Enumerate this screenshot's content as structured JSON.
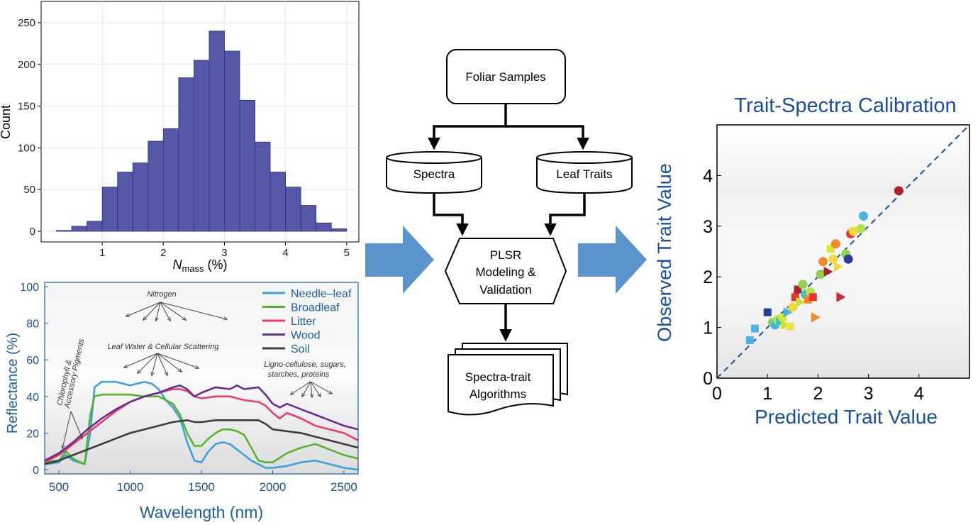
{
  "colors": {
    "histogram_bar": "#5558a6",
    "histogram_edge": "#2f3180",
    "accent_blue": "#1a4f9c",
    "big_arrow": "#5b93cc"
  },
  "chart_data": [
    {
      "type": "bar",
      "histogram": true,
      "xlabel_prefix": "N",
      "xlabel_subscript": "mass",
      "xlabel_suffix": " (%)",
      "ylabel": "Count",
      "bin_edges": [
        0.25,
        0.5,
        0.75,
        1.0,
        1.25,
        1.5,
        1.75,
        2.0,
        2.25,
        2.5,
        2.75,
        3.0,
        3.25,
        3.5,
        3.75,
        4.0,
        4.25,
        4.5,
        4.75,
        5.0
      ],
      "values": [
        1,
        6,
        12,
        53,
        71,
        82,
        108,
        123,
        184,
        205,
        240,
        216,
        157,
        107,
        71,
        53,
        31,
        10,
        3
      ],
      "xlim": [
        0,
        5.2
      ],
      "ylim": [
        0,
        250
      ],
      "xticks": [
        1,
        2,
        3,
        4,
        5
      ],
      "yticks": [
        0,
        50,
        100,
        150,
        200,
        250
      ],
      "grid": true
    },
    {
      "type": "line",
      "xlabel": "Wavelength (nm)",
      "ylabel": "Reflectance (%)",
      "xlim": [
        400,
        2600
      ],
      "ylim": [
        0,
        100
      ],
      "xticks": [
        500,
        1000,
        1500,
        2000,
        2500
      ],
      "yticks": [
        0,
        20,
        40,
        60,
        80,
        100
      ],
      "legend_position": "top-right",
      "series": [
        {
          "name": "Needle–leaf",
          "color": "#3aa3dc",
          "x": [
            400,
            500,
            550,
            600,
            680,
            720,
            750,
            800,
            900,
            1000,
            1100,
            1150,
            1200,
            1250,
            1300,
            1350,
            1400,
            1450,
            1500,
            1550,
            1600,
            1650,
            1700,
            1750,
            1800,
            1850,
            1900,
            1950,
            2000,
            2100,
            2200,
            2300,
            2400,
            2500,
            2600
          ],
          "y": [
            3,
            4,
            8,
            5,
            3,
            20,
            45,
            48,
            48,
            46,
            48,
            47,
            44,
            38,
            34,
            28,
            15,
            5,
            4,
            10,
            14,
            15,
            14,
            11,
            8,
            5,
            3,
            1,
            1,
            2,
            4,
            5,
            3,
            1,
            0
          ]
        },
        {
          "name": "Broadleaf",
          "color": "#55b52e",
          "x": [
            400,
            500,
            550,
            600,
            680,
            720,
            750,
            800,
            900,
            1000,
            1100,
            1200,
            1300,
            1350,
            1400,
            1450,
            1500,
            1550,
            1600,
            1650,
            1700,
            1750,
            1800,
            1850,
            1900,
            1950,
            2000,
            2100,
            2200,
            2300,
            2400,
            2500,
            2600
          ],
          "y": [
            4,
            5,
            10,
            6,
            3,
            30,
            40,
            41,
            41,
            41,
            40,
            40,
            36,
            30,
            20,
            13,
            13,
            17,
            20,
            22,
            22,
            21,
            19,
            12,
            5,
            4,
            4,
            9,
            12,
            14,
            11,
            8,
            6
          ]
        },
        {
          "name": "Litter",
          "color": "#e83c6b",
          "x": [
            400,
            500,
            600,
            700,
            800,
            900,
            1000,
            1100,
            1200,
            1300,
            1350,
            1400,
            1450,
            1500,
            1600,
            1700,
            1800,
            1900,
            1950,
            2000,
            2050,
            2100,
            2200,
            2300,
            2400,
            2500,
            2600
          ],
          "y": [
            4,
            8,
            14,
            20,
            26,
            32,
            37,
            40,
            42,
            44,
            44,
            43,
            40,
            39,
            40,
            40,
            38,
            37,
            35,
            31,
            28,
            31,
            28,
            24,
            22,
            20,
            16
          ]
        },
        {
          "name": "Wood",
          "color": "#6a2c91",
          "x": [
            400,
            500,
            600,
            700,
            800,
            900,
            1000,
            1100,
            1200,
            1300,
            1350,
            1400,
            1450,
            1500,
            1600,
            1700,
            1750,
            1800,
            1900,
            1950,
            2000,
            2050,
            2100,
            2200,
            2300,
            2400,
            2500,
            2600
          ],
          "y": [
            5,
            9,
            15,
            22,
            28,
            33,
            37,
            40,
            42,
            45,
            46,
            44,
            40,
            42,
            45,
            44,
            46,
            44,
            45,
            41,
            36,
            34,
            36,
            33,
            30,
            27,
            24,
            22
          ]
        },
        {
          "name": "Soil",
          "color": "#3d3d3d",
          "x": [
            400,
            500,
            600,
            700,
            800,
            900,
            1000,
            1100,
            1200,
            1300,
            1400,
            1450,
            1500,
            1600,
            1700,
            1800,
            1900,
            1950,
            2000,
            2100,
            2200,
            2300,
            2400,
            2500,
            2600
          ],
          "y": [
            3,
            5,
            8,
            11,
            14,
            17,
            20,
            22,
            24,
            26,
            27,
            26,
            26,
            27,
            27,
            27,
            27,
            25,
            22,
            21,
            20,
            18,
            16,
            14,
            12
          ]
        }
      ],
      "annotations": [
        "Nitrogen",
        "Leaf Water & Cellular Scattering",
        "Ligno-cellulose, sugars,",
        "starches, proteins",
        "Chlorophyll &",
        "Accessory Pigments"
      ]
    },
    {
      "type": "scatter",
      "title": "Trait-Spectra Calibration",
      "xlabel": "Predicted Trait Value",
      "ylabel": "Observed Trait Value",
      "xlim": [
        0,
        5
      ],
      "ylim": [
        0,
        5
      ],
      "xticks": [
        0,
        1,
        2,
        3,
        4
      ],
      "yticks": [
        0,
        1,
        2,
        3,
        4
      ],
      "one_to_one_line": true,
      "points": [
        {
          "x": 0.65,
          "y": 0.75,
          "shape": "square",
          "color": "#4ab3e0"
        },
        {
          "x": 0.75,
          "y": 0.98,
          "shape": "square",
          "color": "#4ab3e0"
        },
        {
          "x": 1.0,
          "y": 1.3,
          "shape": "square",
          "color": "#2b3b9c"
        },
        {
          "x": 1.1,
          "y": 1.1,
          "shape": "circle",
          "color": "#8fd14f"
        },
        {
          "x": 1.15,
          "y": 1.05,
          "shape": "circle",
          "color": "#4ab3e0"
        },
        {
          "x": 1.2,
          "y": 1.15,
          "shape": "circle",
          "color": "#b4e04a"
        },
        {
          "x": 1.25,
          "y": 1.1,
          "shape": "triangle",
          "color": "#36c7c7"
        },
        {
          "x": 1.3,
          "y": 1.2,
          "shape": "square",
          "color": "#d8e832"
        },
        {
          "x": 1.35,
          "y": 1.05,
          "shape": "triangle",
          "color": "#c8e030"
        },
        {
          "x": 1.4,
          "y": 1.3,
          "shape": "triangle",
          "color": "#4ab3e0"
        },
        {
          "x": 1.45,
          "y": 1.02,
          "shape": "square",
          "color": "#f2e24a"
        },
        {
          "x": 1.5,
          "y": 1.4,
          "shape": "circle",
          "color": "#f5d93b"
        },
        {
          "x": 1.55,
          "y": 1.6,
          "shape": "square",
          "color": "#e8342b"
        },
        {
          "x": 1.6,
          "y": 1.75,
          "shape": "square",
          "color": "#a8222e"
        },
        {
          "x": 1.65,
          "y": 1.5,
          "shape": "triangle",
          "color": "#c8e030"
        },
        {
          "x": 1.7,
          "y": 1.85,
          "shape": "circle",
          "color": "#8fd14f"
        },
        {
          "x": 1.75,
          "y": 1.65,
          "shape": "circle",
          "color": "#36c7c7"
        },
        {
          "x": 1.8,
          "y": 1.55,
          "shape": "square",
          "color": "#f28a2b"
        },
        {
          "x": 1.85,
          "y": 1.7,
          "shape": "circle",
          "color": "#b4e04a"
        },
        {
          "x": 1.9,
          "y": 1.6,
          "shape": "square",
          "color": "#e8342b"
        },
        {
          "x": 1.95,
          "y": 1.2,
          "shape": "triangle",
          "color": "#f28a2b"
        },
        {
          "x": 2.05,
          "y": 2.05,
          "shape": "circle",
          "color": "#8fd14f"
        },
        {
          "x": 2.1,
          "y": 2.3,
          "shape": "circle",
          "color": "#f28a2b"
        },
        {
          "x": 2.2,
          "y": 2.1,
          "shape": "triangle",
          "color": "#a8222e"
        },
        {
          "x": 2.25,
          "y": 2.55,
          "shape": "square",
          "color": "#d8e832"
        },
        {
          "x": 2.3,
          "y": 2.35,
          "shape": "circle",
          "color": "#f5d93b"
        },
        {
          "x": 2.35,
          "y": 2.65,
          "shape": "circle",
          "color": "#f28a2b"
        },
        {
          "x": 2.4,
          "y": 2.2,
          "shape": "triangle",
          "color": "#f5d93b"
        },
        {
          "x": 2.45,
          "y": 1.6,
          "shape": "triangle",
          "color": "#d02a2a"
        },
        {
          "x": 2.55,
          "y": 2.45,
          "shape": "circle",
          "color": "#8fd14f"
        },
        {
          "x": 2.6,
          "y": 2.35,
          "shape": "circle",
          "color": "#2b3b9c"
        },
        {
          "x": 2.65,
          "y": 2.85,
          "shape": "circle",
          "color": "#e8342b"
        },
        {
          "x": 2.7,
          "y": 2.9,
          "shape": "circle",
          "color": "#f5d93b"
        },
        {
          "x": 2.85,
          "y": 2.95,
          "shape": "circle",
          "color": "#b4e04a"
        },
        {
          "x": 2.9,
          "y": 3.2,
          "shape": "circle",
          "color": "#4ab3e0"
        },
        {
          "x": 3.6,
          "y": 3.7,
          "shape": "circle",
          "color": "#a8222e"
        }
      ]
    }
  ],
  "flowchart": {
    "foliar": "Foliar Samples",
    "spectra": "Spectra",
    "traits": "Leaf Traits",
    "plsr_lines": [
      "PLSR",
      "Modeling &",
      "Validation"
    ],
    "algo_lines": [
      "Spectra-trait",
      "Algorithms"
    ]
  }
}
